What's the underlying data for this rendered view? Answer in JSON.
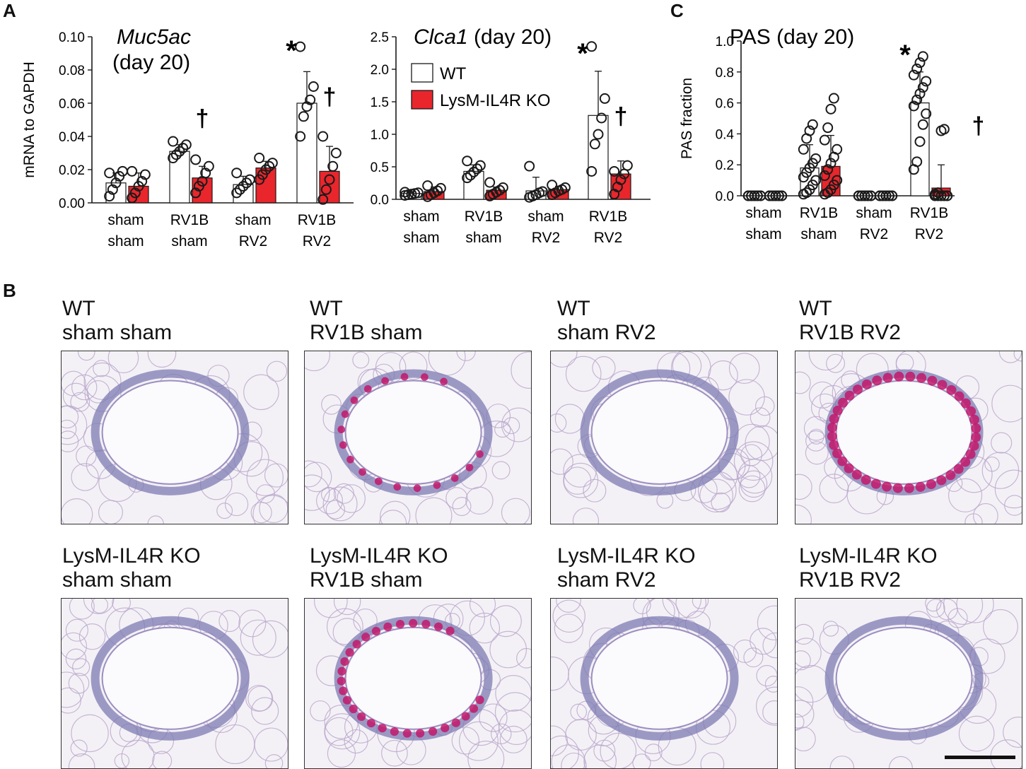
{
  "panels": {
    "A": "A",
    "B": "B",
    "C": "C"
  },
  "legend": {
    "wt": "WT",
    "ko": "LysM-IL4R KO"
  },
  "colors": {
    "wt_fill": "#ffffff",
    "ko_fill": "#e8262c",
    "axis": "#1a1a1a",
    "pas_stain": "#c2176b",
    "hema_stain": "#7d7bb3"
  },
  "chart_data": [
    {
      "type": "bar",
      "id": "muc5ac",
      "title_italic": "Muc5ac",
      "title_rest": "(day 20)",
      "ylabel": "mRNA to GAPDH",
      "ylim": [
        0,
        0.1
      ],
      "yticks": [
        "0.00",
        "0.02",
        "0.04",
        "0.06",
        "0.08",
        "0.10"
      ],
      "categories": [
        [
          "sham",
          "sham"
        ],
        [
          "RV1B",
          "sham"
        ],
        [
          "sham",
          "RV2"
        ],
        [
          "RV1B",
          "RV2"
        ]
      ],
      "series": [
        {
          "name": "WT",
          "values": [
            0.012,
            0.031,
            0.011,
            0.06
          ],
          "errors": [
            0.006,
            0.004,
            0.005,
            0.019
          ],
          "points": [
            [
              0.004,
              0.008,
              0.012,
              0.016,
              0.019,
              0.018
            ],
            [
              0.027,
              0.029,
              0.031,
              0.033,
              0.035,
              0.037
            ],
            [
              0.006,
              0.008,
              0.01,
              0.012,
              0.014,
              0.018
            ],
            [
              0.04,
              0.052,
              0.058,
              0.062,
              0.07,
              0.094
            ]
          ]
        },
        {
          "name": "LysM-IL4R KO",
          "values": [
            0.01,
            0.015,
            0.021,
            0.019
          ],
          "errors": [
            0.008,
            0.007,
            0.004,
            0.015
          ],
          "points": [
            [
              0.003,
              0.006,
              0.01,
              0.013,
              0.017,
              0.019
            ],
            [
              0.006,
              0.01,
              0.013,
              0.018,
              0.022,
              0.026
            ],
            [
              0.014,
              0.017,
              0.02,
              0.022,
              0.024,
              0.027
            ],
            [
              0.002,
              0.008,
              0.014,
              0.022,
              0.03,
              0.04
            ]
          ]
        }
      ],
      "annotations": [
        {
          "text": "*",
          "cat": 3,
          "y": 0.086,
          "kind": "star"
        },
        {
          "text": "†",
          "cat": 1,
          "y": 0.046,
          "kind": "dagger"
        },
        {
          "text": "†",
          "cat": 3,
          "y": 0.059,
          "kind": "dagger"
        }
      ]
    },
    {
      "type": "bar",
      "id": "clca1",
      "title_italic": "Clca1",
      "title_rest": "(day 20)",
      "ylabel": "",
      "ylim": [
        0,
        2.5
      ],
      "yticks": [
        "0.0",
        "0.5",
        "1.0",
        "1.5",
        "2.0",
        "2.5"
      ],
      "categories": [
        [
          "sham",
          "sham"
        ],
        [
          "RV1B",
          "sham"
        ],
        [
          "sham",
          "RV2"
        ],
        [
          "RV1B",
          "RV2"
        ]
      ],
      "series": [
        {
          "name": "WT",
          "values": [
            0.09,
            0.43,
            0.13,
            1.29
          ],
          "errors": [
            0.03,
            0.1,
            0.21,
            0.68
          ],
          "points": [
            [
              0.06,
              0.07,
              0.08,
              0.09,
              0.1,
              0.11
            ],
            [
              0.33,
              0.37,
              0.42,
              0.47,
              0.52,
              0.59
            ],
            [
              0.03,
              0.05,
              0.07,
              0.1,
              0.12,
              0.51
            ],
            [
              0.43,
              0.85,
              1.0,
              1.25,
              1.55,
              2.35
            ]
          ]
        },
        {
          "name": "LysM-IL4R KO",
          "values": [
            0.12,
            0.14,
            0.15,
            0.39
          ],
          "errors": [
            0.07,
            0.05,
            0.05,
            0.2
          ],
          "points": [
            [
              0.04,
              0.07,
              0.1,
              0.13,
              0.17,
              0.21
            ],
            [
              0.05,
              0.08,
              0.11,
              0.14,
              0.18,
              0.26
            ],
            [
              0.07,
              0.1,
              0.13,
              0.15,
              0.18,
              0.22
            ],
            [
              0.08,
              0.19,
              0.3,
              0.39,
              0.52,
              0.43
            ]
          ]
        }
      ],
      "legend_entries": [
        "WT",
        "LysM-IL4R KO"
      ],
      "annotations": [
        {
          "text": "*",
          "cat": 3,
          "y": 2.1,
          "kind": "star"
        },
        {
          "text": "†",
          "cat": 3,
          "y": 1.15,
          "kind": "dagger"
        }
      ]
    },
    {
      "type": "bar",
      "id": "pas",
      "title_italic": "",
      "title_rest": "PAS (day 20)",
      "ylabel": "PAS fraction",
      "ylim": [
        0,
        1.0
      ],
      "yticks": [
        "0.0",
        "0.2",
        "0.4",
        "0.6",
        "0.8",
        "1.0"
      ],
      "categories": [
        [
          "sham",
          "sham"
        ],
        [
          "RV1B",
          "sham"
        ],
        [
          "sham",
          "RV2"
        ],
        [
          "RV1B",
          "RV2"
        ]
      ],
      "series": [
        {
          "name": "WT",
          "values": [
            0.0,
            0.18,
            0.0,
            0.6
          ],
          "errors": [
            0.0,
            0.15,
            0.0,
            0.2
          ],
          "points": [
            [
              0,
              0,
              0,
              0,
              0,
              0,
              0,
              0,
              0,
              0,
              0,
              0,
              0,
              0
            ],
            [
              0.01,
              0.02,
              0.04,
              0.07,
              0.1,
              0.12,
              0.15,
              0.18,
              0.21,
              0.24,
              0.3,
              0.37,
              0.42,
              0.46
            ],
            [
              0,
              0,
              0,
              0,
              0,
              0,
              0,
              0,
              0,
              0,
              0,
              0,
              0,
              0
            ],
            [
              0.17,
              0.22,
              0.35,
              0.46,
              0.53,
              0.58,
              0.62,
              0.66,
              0.7,
              0.74,
              0.78,
              0.82,
              0.86,
              0.9
            ]
          ]
        },
        {
          "name": "LysM-IL4R KO",
          "values": [
            0.0,
            0.19,
            0.0,
            0.05
          ],
          "errors": [
            0.0,
            0.2,
            0.0,
            0.15
          ],
          "points": [
            [
              0,
              0,
              0,
              0,
              0,
              0,
              0,
              0,
              0,
              0,
              0,
              0,
              0,
              0
            ],
            [
              0.01,
              0.02,
              0.04,
              0.07,
              0.1,
              0.13,
              0.17,
              0.21,
              0.25,
              0.3,
              0.36,
              0.44,
              0.56,
              0.63
            ],
            [
              0,
              0,
              0,
              0,
              0,
              0,
              0,
              0,
              0,
              0,
              0,
              0,
              0,
              0
            ],
            [
              0,
              0,
              0,
              0,
              0,
              0,
              0,
              0,
              0,
              0,
              0.01,
              0.02,
              0.42,
              0.43
            ]
          ]
        }
      ],
      "annotations": [
        {
          "text": "*",
          "cat": 3,
          "y": 0.85,
          "kind": "star"
        },
        {
          "text": "†",
          "cat": 3,
          "y": 0.4,
          "kind": "dagger-right"
        }
      ]
    }
  ],
  "micrographs": [
    {
      "line1": "WT",
      "line2": "sham sham",
      "pas": 0
    },
    {
      "line1": "WT",
      "line2": "RV1B sham",
      "pas": 0.45
    },
    {
      "line1": "WT",
      "line2": "sham RV2",
      "pas": 0
    },
    {
      "line1": "WT",
      "line2": "RV1B RV2",
      "pas": 1
    },
    {
      "line1": "LysM-IL4R KO",
      "line2": "sham sham",
      "pas": 0
    },
    {
      "line1": "LysM-IL4R KO",
      "line2": "RV1B sham",
      "pas": 0.7
    },
    {
      "line1": "LysM-IL4R KO",
      "line2": "sham RV2",
      "pas": 0
    },
    {
      "line1": "LysM-IL4R KO",
      "line2": "RV1B RV2",
      "pas": 0
    }
  ]
}
